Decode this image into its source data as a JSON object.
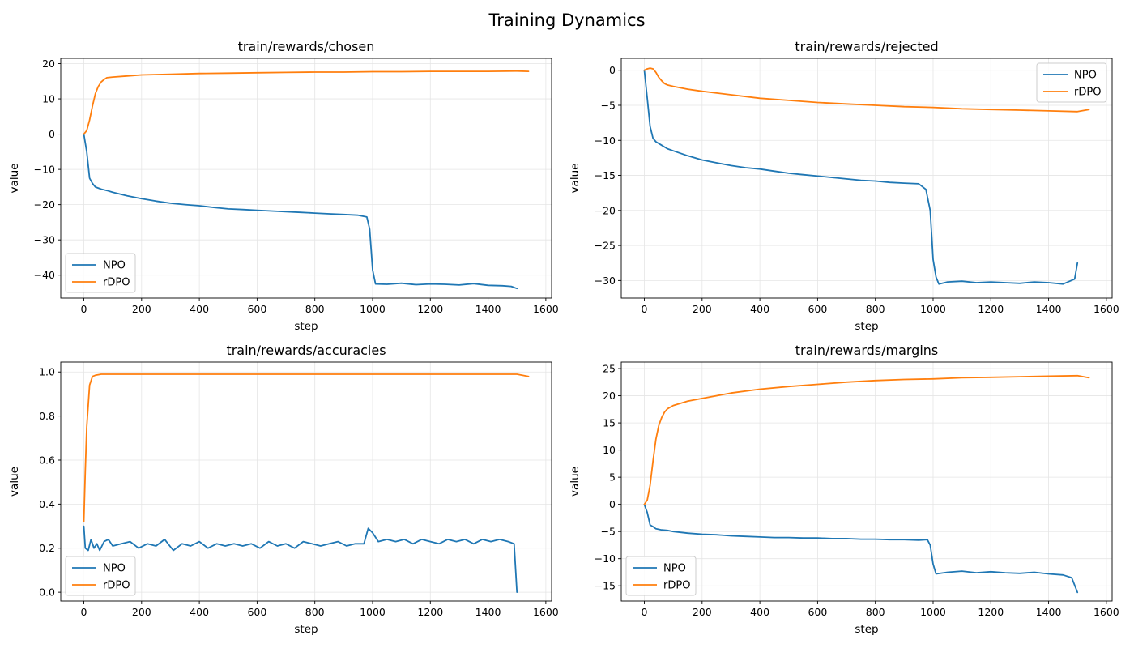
{
  "figure_title": "Training Dynamics",
  "colors": {
    "NPO": "#1f77b4",
    "rDPO": "#ff7f0e"
  },
  "chart_data": [
    {
      "type": "line",
      "title": "train/rewards/chosen",
      "xlabel": "step",
      "ylabel": "value",
      "xlim": [
        -80,
        1620
      ],
      "ylim": [
        -46.5,
        21.5
      ],
      "xticks": [
        0,
        200,
        400,
        600,
        800,
        1000,
        1200,
        1400,
        1600
      ],
      "yticks": [
        20,
        10,
        0,
        -10,
        -20,
        -30,
        -40
      ],
      "grid": true,
      "legend": "lower-left",
      "series": [
        {
          "name": "NPO",
          "color": "#1f77b4",
          "x": [
            0,
            10,
            20,
            30,
            40,
            60,
            80,
            100,
            150,
            200,
            250,
            300,
            350,
            400,
            450,
            500,
            550,
            600,
            650,
            700,
            750,
            800,
            850,
            900,
            950,
            980,
            990,
            1000,
            1010,
            1050,
            1100,
            1150,
            1200,
            1250,
            1300,
            1350,
            1400,
            1450,
            1480,
            1500
          ],
          "y": [
            0,
            -5,
            -12.5,
            -14,
            -15,
            -15.6,
            -16,
            -16.5,
            -17.5,
            -18.3,
            -19,
            -19.6,
            -20,
            -20.3,
            -20.8,
            -21.2,
            -21.4,
            -21.6,
            -21.8,
            -22,
            -22.2,
            -22.4,
            -22.6,
            -22.8,
            -23,
            -23.5,
            -27,
            -38.5,
            -42.5,
            -42.6,
            -42.3,
            -42.7,
            -42.5,
            -42.6,
            -42.8,
            -42.4,
            -42.9,
            -43,
            -43.2,
            -43.8
          ]
        },
        {
          "name": "rDPO",
          "color": "#ff7f0e",
          "x": [
            0,
            10,
            20,
            30,
            40,
            50,
            60,
            70,
            80,
            100,
            150,
            200,
            300,
            400,
            500,
            600,
            700,
            800,
            900,
            1000,
            1100,
            1200,
            1300,
            1400,
            1500,
            1540
          ],
          "y": [
            0,
            1,
            4,
            8,
            11.5,
            13.5,
            14.8,
            15.5,
            16,
            16.2,
            16.5,
            16.8,
            17,
            17.2,
            17.3,
            17.4,
            17.5,
            17.6,
            17.6,
            17.7,
            17.7,
            17.8,
            17.8,
            17.8,
            17.9,
            17.8
          ]
        }
      ]
    },
    {
      "type": "line",
      "title": "train/rewards/rejected",
      "xlabel": "step",
      "ylabel": "value",
      "xlim": [
        -80,
        1620
      ],
      "ylim": [
        -32.5,
        1.7
      ],
      "xticks": [
        0,
        200,
        400,
        600,
        800,
        1000,
        1200,
        1400,
        1600
      ],
      "yticks": [
        0,
        -5,
        -10,
        -15,
        -20,
        -25,
        -30
      ],
      "grid": true,
      "legend": "upper-right",
      "series": [
        {
          "name": "NPO",
          "color": "#1f77b4",
          "x": [
            0,
            10,
            20,
            30,
            40,
            60,
            80,
            100,
            150,
            200,
            250,
            300,
            350,
            400,
            450,
            500,
            550,
            600,
            650,
            700,
            750,
            800,
            850,
            900,
            950,
            975,
            990,
            1000,
            1010,
            1020,
            1050,
            1100,
            1150,
            1200,
            1250,
            1300,
            1350,
            1400,
            1450,
            1490,
            1500
          ],
          "y": [
            0,
            -4,
            -8,
            -9.7,
            -10.2,
            -10.7,
            -11.2,
            -11.5,
            -12.2,
            -12.8,
            -13.2,
            -13.6,
            -13.9,
            -14.1,
            -14.4,
            -14.7,
            -14.9,
            -15.1,
            -15.3,
            -15.5,
            -15.7,
            -15.8,
            -16,
            -16.1,
            -16.2,
            -17,
            -20,
            -27,
            -29.5,
            -30.5,
            -30.2,
            -30.1,
            -30.3,
            -30.2,
            -30.3,
            -30.4,
            -30.2,
            -30.3,
            -30.5,
            -29.8,
            -27.5
          ]
        },
        {
          "name": "rDPO",
          "color": "#ff7f0e",
          "x": [
            0,
            10,
            20,
            30,
            40,
            50,
            60,
            70,
            80,
            100,
            150,
            200,
            300,
            400,
            500,
            600,
            700,
            800,
            900,
            1000,
            1100,
            1200,
            1300,
            1400,
            1500,
            1540
          ],
          "y": [
            0,
            0.2,
            0.3,
            0.2,
            -0.3,
            -1,
            -1.5,
            -1.9,
            -2.1,
            -2.3,
            -2.7,
            -3,
            -3.5,
            -4,
            -4.3,
            -4.6,
            -4.8,
            -5,
            -5.2,
            -5.3,
            -5.5,
            -5.6,
            -5.7,
            -5.8,
            -5.9,
            -5.6
          ]
        }
      ]
    },
    {
      "type": "line",
      "title": "train/rewards/accuracies",
      "xlabel": "step",
      "ylabel": "value",
      "xlim": [
        -80,
        1620
      ],
      "ylim": [
        -0.04,
        1.045
      ],
      "xticks": [
        0,
        200,
        400,
        600,
        800,
        1000,
        1200,
        1400,
        1600
      ],
      "yticks": [
        1.0,
        0.8,
        0.6,
        0.4,
        0.2,
        0.0
      ],
      "grid": true,
      "legend": "lower-left",
      "series": [
        {
          "name": "NPO",
          "color": "#1f77b4",
          "x": [
            0,
            5,
            15,
            25,
            35,
            45,
            55,
            70,
            85,
            100,
            130,
            160,
            190,
            220,
            250,
            280,
            310,
            340,
            370,
            400,
            430,
            460,
            490,
            520,
            550,
            580,
            610,
            640,
            670,
            700,
            730,
            760,
            790,
            820,
            850,
            880,
            910,
            940,
            970,
            985,
            1000,
            1020,
            1050,
            1080,
            1110,
            1140,
            1170,
            1200,
            1230,
            1260,
            1290,
            1320,
            1350,
            1380,
            1410,
            1440,
            1470,
            1490,
            1500
          ],
          "y": [
            0.3,
            0.2,
            0.19,
            0.24,
            0.2,
            0.22,
            0.19,
            0.23,
            0.24,
            0.21,
            0.22,
            0.23,
            0.2,
            0.22,
            0.21,
            0.24,
            0.19,
            0.22,
            0.21,
            0.23,
            0.2,
            0.22,
            0.21,
            0.22,
            0.21,
            0.22,
            0.2,
            0.23,
            0.21,
            0.22,
            0.2,
            0.23,
            0.22,
            0.21,
            0.22,
            0.23,
            0.21,
            0.22,
            0.22,
            0.29,
            0.27,
            0.23,
            0.24,
            0.23,
            0.24,
            0.22,
            0.24,
            0.23,
            0.22,
            0.24,
            0.23,
            0.24,
            0.22,
            0.24,
            0.23,
            0.24,
            0.23,
            0.22,
            0.0
          ]
        },
        {
          "name": "rDPO",
          "color": "#ff7f0e",
          "x": [
            0,
            5,
            10,
            20,
            30,
            40,
            60,
            100,
            200,
            300,
            400,
            500,
            600,
            700,
            800,
            900,
            1000,
            1100,
            1200,
            1300,
            1400,
            1500,
            1540
          ],
          "y": [
            0.32,
            0.55,
            0.75,
            0.94,
            0.98,
            0.985,
            0.99,
            0.99,
            0.99,
            0.99,
            0.99,
            0.99,
            0.99,
            0.99,
            0.99,
            0.99,
            0.99,
            0.99,
            0.99,
            0.99,
            0.99,
            0.99,
            0.98
          ]
        }
      ]
    },
    {
      "type": "line",
      "title": "train/rewards/margins",
      "xlabel": "step",
      "ylabel": "value",
      "xlim": [
        -80,
        1620
      ],
      "ylim": [
        -17.8,
        26.2
      ],
      "xticks": [
        0,
        200,
        400,
        600,
        800,
        1000,
        1200,
        1400,
        1600
      ],
      "yticks": [
        25,
        20,
        15,
        10,
        5,
        0,
        -5,
        -10,
        -15
      ],
      "grid": true,
      "legend": "lower-left",
      "series": [
        {
          "name": "NPO",
          "color": "#1f77b4",
          "x": [
            0,
            10,
            20,
            30,
            40,
            60,
            80,
            100,
            150,
            200,
            250,
            300,
            350,
            400,
            450,
            500,
            550,
            600,
            650,
            700,
            750,
            800,
            850,
            900,
            950,
            980,
            990,
            1000,
            1010,
            1050,
            1100,
            1150,
            1200,
            1250,
            1300,
            1350,
            1400,
            1450,
            1480,
            1500
          ],
          "y": [
            0,
            -1.5,
            -3.8,
            -4.1,
            -4.5,
            -4.7,
            -4.8,
            -5,
            -5.3,
            -5.5,
            -5.6,
            -5.8,
            -5.9,
            -6,
            -6.1,
            -6.1,
            -6.2,
            -6.2,
            -6.3,
            -6.3,
            -6.4,
            -6.4,
            -6.5,
            -6.5,
            -6.6,
            -6.5,
            -7.5,
            -11,
            -12.8,
            -12.5,
            -12.3,
            -12.6,
            -12.4,
            -12.6,
            -12.7,
            -12.5,
            -12.8,
            -13,
            -13.5,
            -16.2
          ]
        },
        {
          "name": "rDPO",
          "color": "#ff7f0e",
          "x": [
            0,
            10,
            20,
            30,
            40,
            50,
            60,
            70,
            80,
            100,
            150,
            200,
            300,
            400,
            500,
            600,
            700,
            800,
            900,
            1000,
            1100,
            1200,
            1300,
            1400,
            1500,
            1540
          ],
          "y": [
            0,
            0.8,
            3.5,
            8,
            12,
            14.5,
            16,
            17,
            17.6,
            18.2,
            19,
            19.5,
            20.5,
            21.2,
            21.7,
            22.1,
            22.5,
            22.8,
            23,
            23.1,
            23.3,
            23.4,
            23.5,
            23.6,
            23.7,
            23.3
          ]
        }
      ]
    }
  ]
}
